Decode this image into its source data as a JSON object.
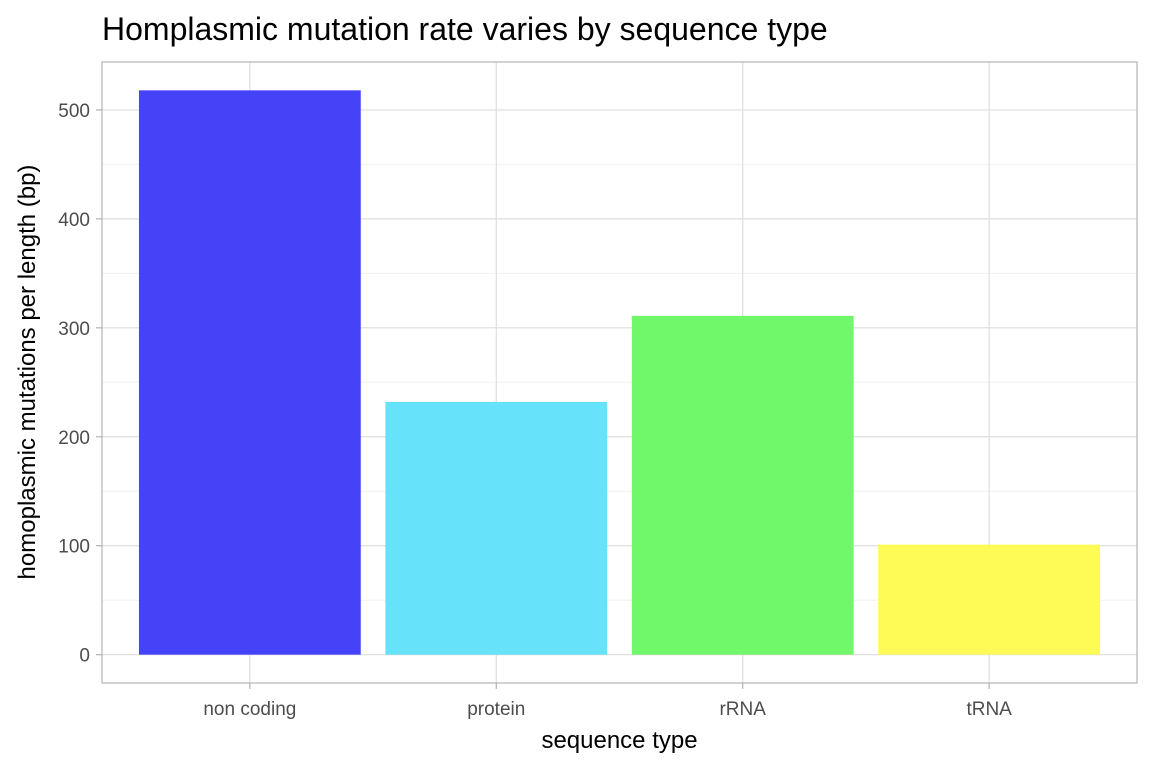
{
  "chart_data": {
    "type": "bar",
    "title": "Homplasmic mutation rate varies by sequence type",
    "xlabel": "sequence type",
    "ylabel": "homoplasmic mutations per length (bp)",
    "categories": [
      "non coding",
      "protein",
      "rRNA",
      "tRNA"
    ],
    "values": [
      518,
      232,
      311,
      101
    ],
    "colors": [
      "#4543F8",
      "#66E2FA",
      "#70F76A",
      "#FEFA56"
    ],
    "ylim": [
      -26,
      544
    ],
    "yticks": [
      0,
      100,
      200,
      300,
      400,
      500
    ],
    "ytick_labels": [
      "0",
      "100",
      "200",
      "300",
      "400",
      "500"
    ],
    "grid": true,
    "legend": "none"
  }
}
